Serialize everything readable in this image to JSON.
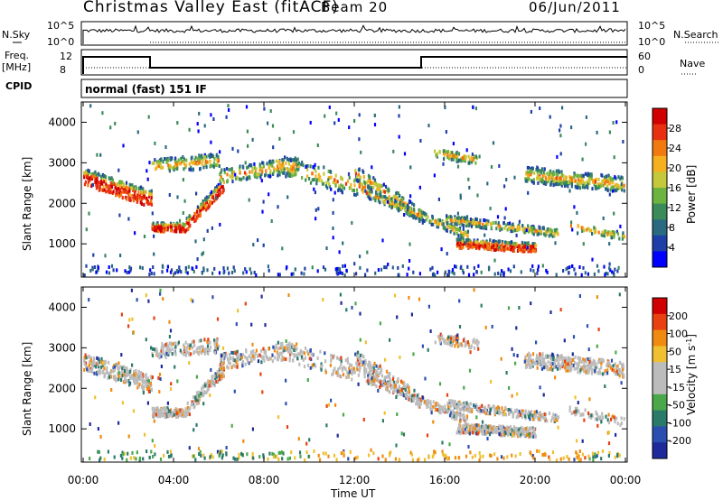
{
  "header": {
    "title": "Christmas Valley East (fitACF)",
    "beam": "Beam 20",
    "date": "06/Jun/2011"
  },
  "top_panels": {
    "nsky_label": "N.Sky",
    "nsky_ticks": [
      "10^5",
      "10^0"
    ],
    "nsky_right_ticks": [
      "10^5",
      "10^0"
    ],
    "nsearch_label": "N.Search",
    "freq_label_1": "Freq.",
    "freq_label_2": "[MHz]",
    "freq_ticks": [
      "12",
      "8"
    ],
    "nave_ticks": [
      "60",
      "0"
    ],
    "nave_label": "Nave",
    "cpid_label": "CPID",
    "cpid_text": "normal (fast) 151 IF"
  },
  "chart_data": [
    {
      "type": "heatmap",
      "name": "power",
      "ylabel": "Slant Range [km]",
      "yticks": [
        1000,
        2000,
        3000,
        4000
      ],
      "ylim": [
        180,
        4500
      ],
      "colorbar_label": "Power [dB]",
      "colorbar_ticks": [
        "28",
        "24",
        "20",
        "16",
        "12",
        "8",
        "4"
      ],
      "colors": [
        "#0000ff",
        "#1f3fa8",
        "#2a6a80",
        "#3a8a5a",
        "#6db33f",
        "#c4c83a",
        "#f5b020",
        "#f07a10",
        "#e83010",
        "#d00000"
      ]
    },
    {
      "type": "heatmap",
      "name": "velocity",
      "ylabel": "Slant Range [km]",
      "yticks": [
        1000,
        2000,
        3000,
        4000
      ],
      "ylim": [
        180,
        4500
      ],
      "colorbar_label": "Velocity [m s^-1]",
      "colorbar_ticks": [
        "200",
        "100",
        "50",
        "15",
        "-15",
        "-50",
        "-100",
        "-200"
      ],
      "colors": [
        "#1e2a9c",
        "#2a4fb0",
        "#2a7a6a",
        "#4aa84a",
        "#bcbcbc",
        "#bcbcbc",
        "#f0c030",
        "#f08a10",
        "#e84010",
        "#d00000"
      ]
    }
  ],
  "xaxis": {
    "label": "Time UT",
    "ticks": [
      "00:00",
      "04:00",
      "08:00",
      "12:00",
      "16:00",
      "20:00",
      "00:00"
    ]
  }
}
